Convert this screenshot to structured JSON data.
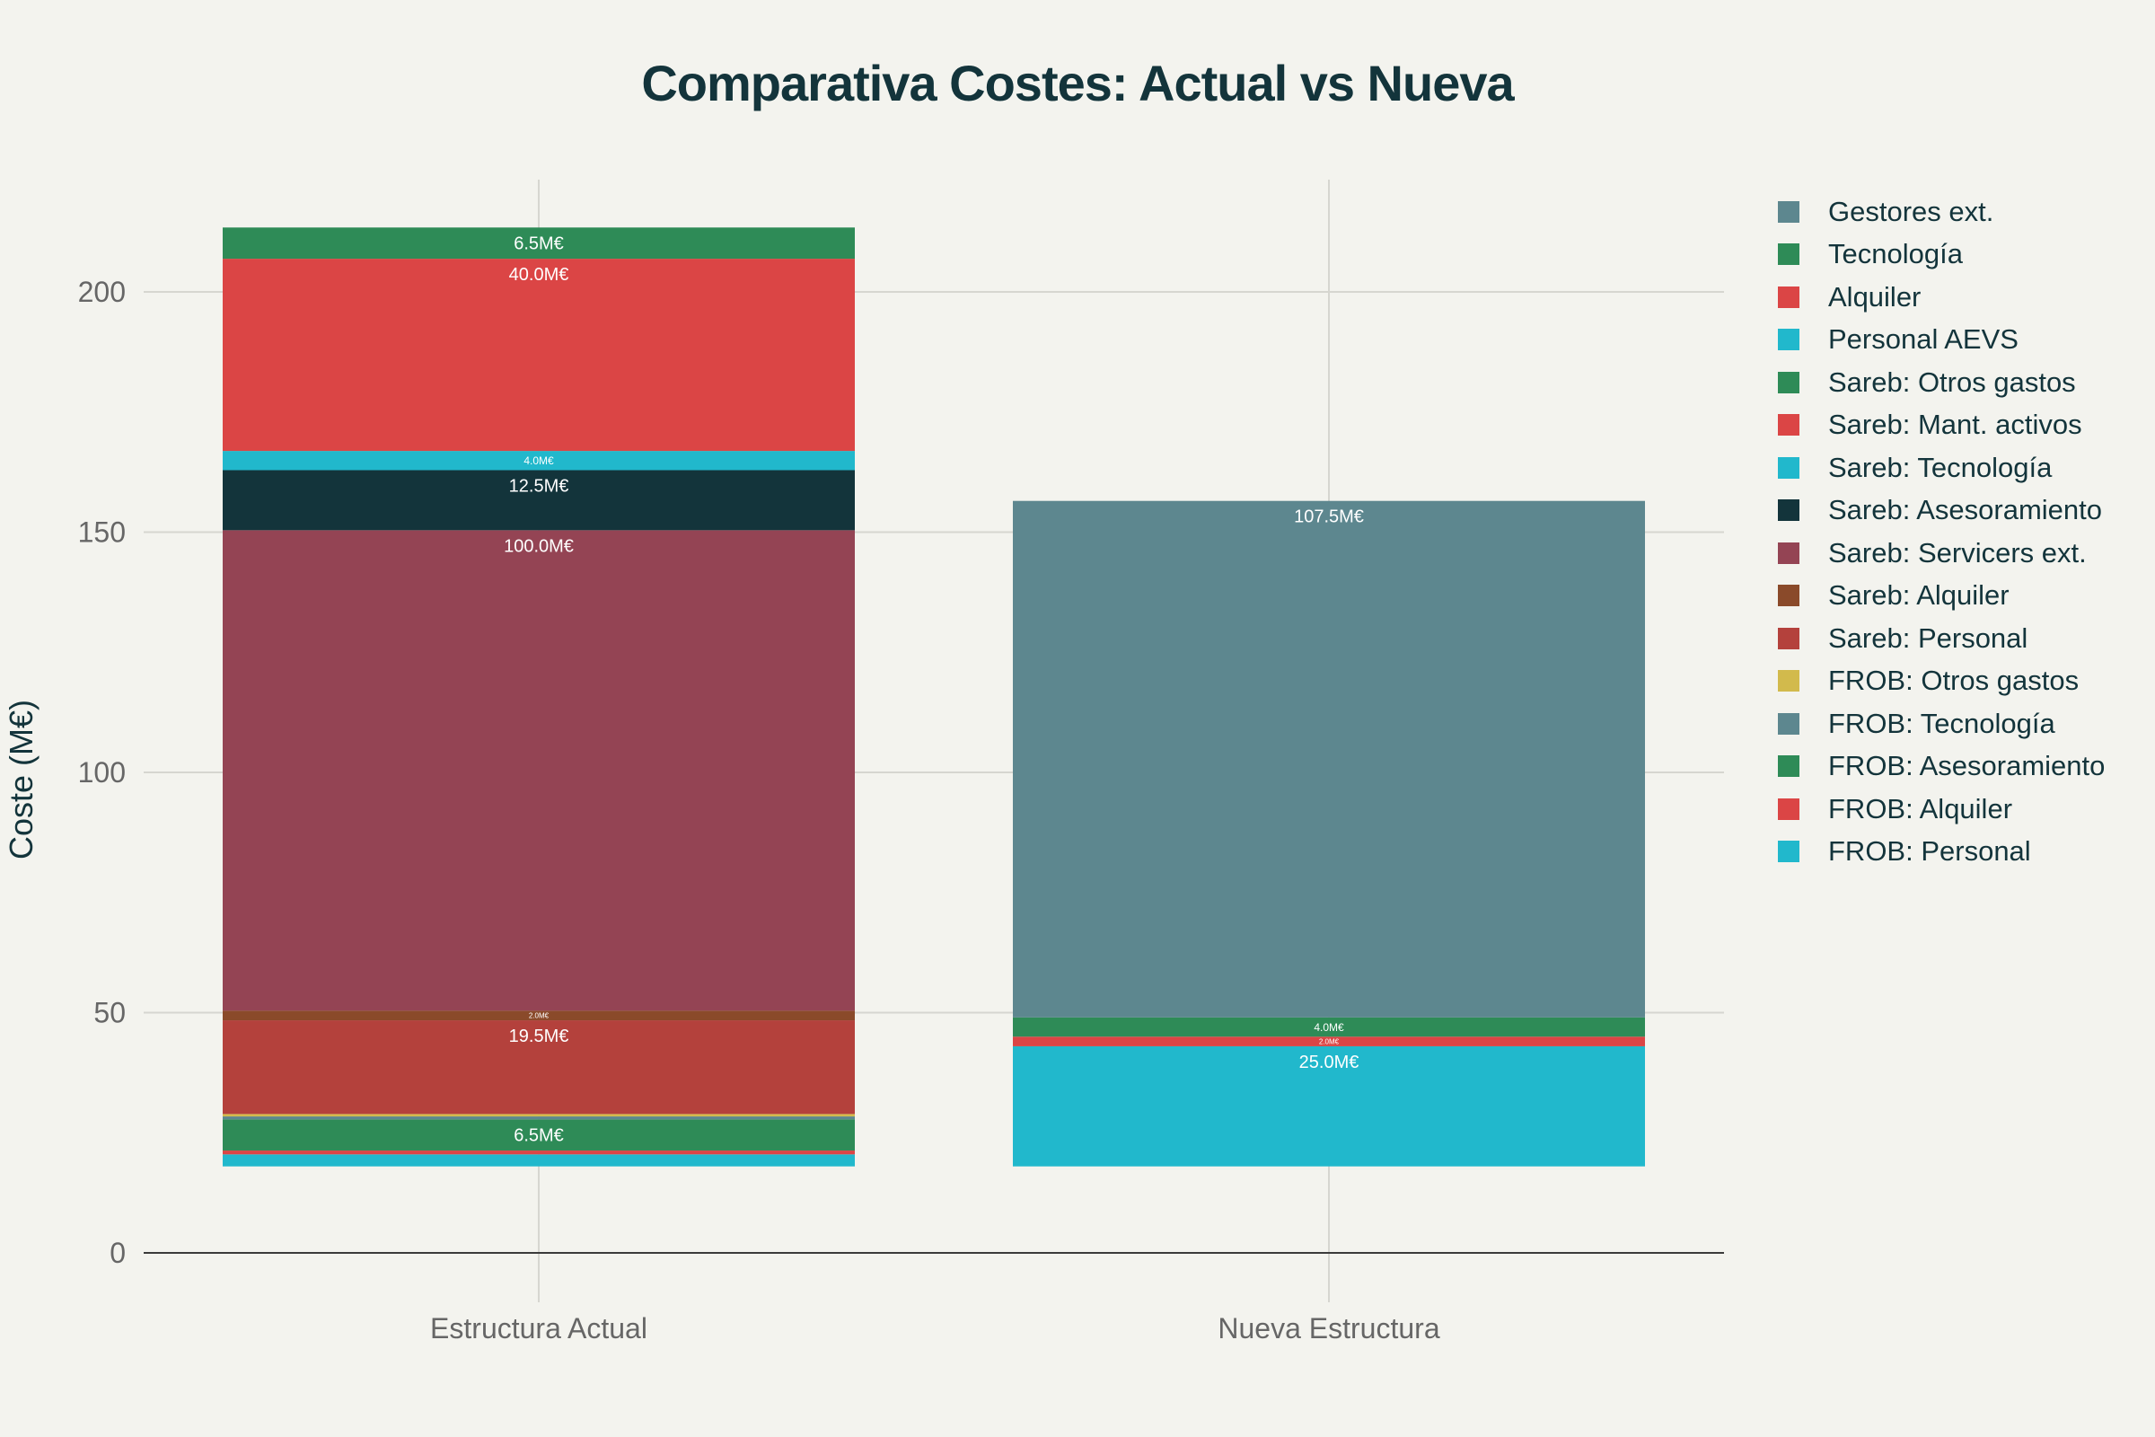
{
  "chart_data": {
    "type": "bar",
    "stacked": true,
    "title": "Comparativa Costes: Actual vs Nueva",
    "xlabel": "",
    "ylabel": "Coste (M€)",
    "ylim": [
      0,
      220
    ],
    "yticks": [
      0,
      50,
      100,
      150,
      200
    ],
    "grid": true,
    "legend_position": "right",
    "categories": [
      "Estructura Actual",
      "Nueva Estructura"
    ],
    "base_value": 18,
    "series": [
      {
        "name": "FROB: Personal",
        "color": "#21b8cc",
        "values": [
          2.5,
          25.0
        ],
        "labels": [
          "",
          "25.0M€"
        ]
      },
      {
        "name": "FROB: Alquiler",
        "color": "#db4545",
        "values": [
          0.8,
          2.0
        ],
        "labels": [
          "",
          "2.0M€"
        ]
      },
      {
        "name": "FROB: Asesoramiento",
        "color": "#2e8b57",
        "values": [
          6.5,
          4.0
        ],
        "labels": [
          "6.5M€",
          "4.0M€"
        ]
      },
      {
        "name": "FROB: Tecnología",
        "color": "#5d878f",
        "values": [
          0.6,
          107.5
        ],
        "labels": [
          "",
          "107.5M€"
        ]
      },
      {
        "name": "FROB: Otros gastos",
        "color": "#d2ba4c",
        "values": [
          0.5,
          0
        ],
        "labels": [
          "",
          ""
        ]
      },
      {
        "name": "Sareb: Personal",
        "color": "#b4413c",
        "values": [
          19.5,
          0
        ],
        "labels": [
          "19.5M€",
          ""
        ]
      },
      {
        "name": "Sareb: Alquiler",
        "color": "#944454",
        "values": [
          0,
          0
        ],
        "labels": [
          "",
          ""
        ]
      },
      {
        "name": "Sareb: Alquiler",
        "color": "#8a4a2a",
        "values": [
          2.0,
          0
        ],
        "labels": [
          "2.0M€",
          ""
        ]
      },
      {
        "name": "Sareb: Servicers ext.",
        "color": "#944454",
        "values": [
          100.0,
          0
        ],
        "labels": [
          "100.0M€",
          ""
        ]
      },
      {
        "name": "Sareb: Asesoramiento",
        "color": "#13343b",
        "values": [
          12.5,
          0
        ],
        "labels": [
          "12.5M€",
          ""
        ]
      },
      {
        "name": "Sareb: Tecnología",
        "color": "#21b8cc",
        "values": [
          4.0,
          0
        ],
        "labels": [
          "4.0M€",
          ""
        ]
      },
      {
        "name": "Sareb: Mant. activos",
        "color": "#db4545",
        "values": [
          40.0,
          0
        ],
        "labels": [
          "40.0M€",
          ""
        ]
      },
      {
        "name": "Sareb: Otros gastos",
        "color": "#2e8b57",
        "values": [
          6.5,
          0
        ],
        "labels": [
          "6.5M€",
          ""
        ]
      }
    ],
    "legend": [
      {
        "name": "Gestores ext.",
        "color": "#5d878f"
      },
      {
        "name": "Tecnología",
        "color": "#2e8b57"
      },
      {
        "name": "Alquiler",
        "color": "#db4545"
      },
      {
        "name": "Personal AEVS",
        "color": "#21b8cc"
      },
      {
        "name": "Sareb: Otros gastos",
        "color": "#2e8b57"
      },
      {
        "name": "Sareb: Mant. activos",
        "color": "#db4545"
      },
      {
        "name": "Sareb: Tecnología",
        "color": "#21b8cc"
      },
      {
        "name": "Sareb: Asesoramiento",
        "color": "#13343b"
      },
      {
        "name": "Sareb: Servicers ext.",
        "color": "#944454"
      },
      {
        "name": "Sareb: Alquiler",
        "color": "#8a4a2a"
      },
      {
        "name": "Sareb: Personal",
        "color": "#b4413c"
      },
      {
        "name": "FROB: Otros gastos",
        "color": "#d2ba4c"
      },
      {
        "name": "FROB: Tecnología",
        "color": "#5d878f"
      },
      {
        "name": "FROB: Asesoramiento",
        "color": "#2e8b57"
      },
      {
        "name": "FROB: Alquiler",
        "color": "#db4545"
      },
      {
        "name": "FROB: Personal",
        "color": "#21b8cc"
      }
    ]
  }
}
